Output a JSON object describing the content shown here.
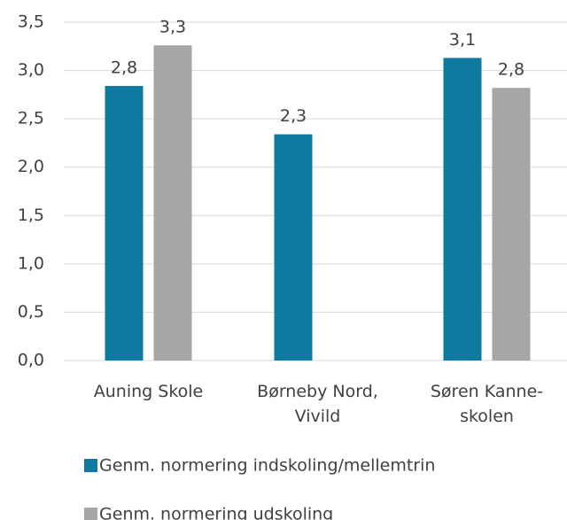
{
  "chart_data": {
    "type": "bar",
    "categories": [
      "Auning Skole",
      "Børneby Nord,\nVivild",
      "Søren Kanne-\nskolen"
    ],
    "series": [
      {
        "name": "Genm. normering indskoling/mellemtrin",
        "color": "#0e7a9f",
        "values": [
          2.84,
          2.34,
          3.13
        ],
        "value_labels": [
          "2,8",
          "2,3",
          "3,1"
        ]
      },
      {
        "name": "Genm. normering udskoling",
        "color": "#a6a6a6",
        "values": [
          3.26,
          null,
          2.82
        ],
        "value_labels": [
          "3,3",
          null,
          "2,8"
        ]
      }
    ],
    "ylim": [
      0,
      3.5
    ],
    "yticks": [
      {
        "value": 0,
        "label": "0,0"
      },
      {
        "value": 0.5,
        "label": "0,5"
      },
      {
        "value": 1,
        "label": "1,0"
      },
      {
        "value": 1.5,
        "label": "1,5"
      },
      {
        "value": 2,
        "label": "2,0"
      },
      {
        "value": 2.5,
        "label": "2,5"
      },
      {
        "value": 3,
        "label": "3,0"
      },
      {
        "value": 3.5,
        "label": "3,5"
      }
    ],
    "grid": true
  }
}
